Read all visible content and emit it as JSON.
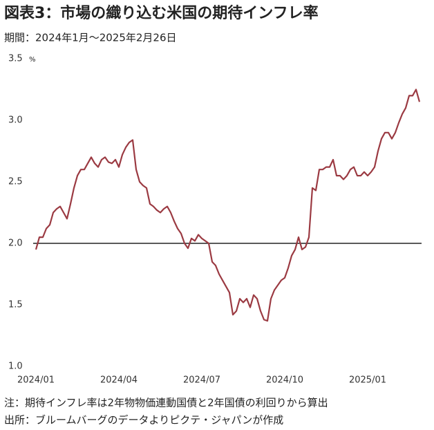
{
  "chart_data": {
    "type": "line",
    "title": "図表3：市場の織り込む米国の期待インフレ率",
    "subtitle": "期間：2024年1月～2025年2月26日",
    "y_unit": "%",
    "note": "注：期待インフレ率は2年物物価連動国債と2年国債の利回りから算出",
    "source": "出所：ブルームバーグのデータよりピクテ・ジャパンが作成",
    "categories": [
      "2024/01",
      null,
      null,
      null,
      null,
      null,
      null,
      null,
      null,
      null,
      null,
      null,
      null,
      null,
      null,
      null,
      null,
      null,
      null,
      null,
      null,
      null,
      null,
      null,
      "2024/04",
      null,
      null,
      null,
      null,
      null,
      null,
      null,
      null,
      null,
      null,
      null,
      null,
      null,
      null,
      null,
      null,
      null,
      null,
      null,
      null,
      null,
      null,
      null,
      "2024/07",
      null,
      null,
      null,
      null,
      null,
      null,
      null,
      null,
      null,
      null,
      null,
      null,
      null,
      null,
      null,
      null,
      null,
      null,
      null,
      null,
      null,
      null,
      null,
      "2024/10",
      null,
      null,
      null,
      null,
      null,
      null,
      null,
      null,
      null,
      null,
      null,
      null,
      null,
      null,
      null,
      null,
      null,
      null,
      null,
      null,
      null,
      null,
      null,
      "2025/01",
      null,
      null,
      null,
      null,
      null,
      null,
      null,
      null,
      null,
      null,
      null,
      null,
      null,
      null,
      null
    ],
    "series": [
      {
        "color": "#9b3a42",
        "values": [
          1.95,
          2.05,
          2.05,
          2.12,
          2.15,
          2.25,
          2.28,
          2.3,
          2.25,
          2.2,
          2.32,
          2.45,
          2.55,
          2.6,
          2.6,
          2.65,
          2.7,
          2.65,
          2.62,
          2.68,
          2.7,
          2.66,
          2.65,
          2.68,
          2.62,
          2.72,
          2.78,
          2.82,
          2.84,
          2.6,
          2.5,
          2.47,
          2.45,
          2.32,
          2.3,
          2.27,
          2.25,
          2.28,
          2.3,
          2.25,
          2.18,
          2.12,
          2.08,
          2.0,
          1.96,
          2.04,
          2.02,
          2.07,
          2.04,
          2.02,
          2.0,
          1.85,
          1.82,
          1.75,
          1.7,
          1.65,
          1.6,
          1.42,
          1.45,
          1.55,
          1.52,
          1.55,
          1.48,
          1.58,
          1.55,
          1.45,
          1.38,
          1.37,
          1.55,
          1.62,
          1.66,
          1.7,
          1.72,
          1.8,
          1.9,
          1.95,
          2.05,
          1.95,
          1.97,
          2.05,
          2.45,
          2.43,
          2.6,
          2.6,
          2.62,
          2.62,
          2.68,
          2.55,
          2.55,
          2.52,
          2.55,
          2.6,
          2.62,
          2.55,
          2.55,
          2.58,
          2.55,
          2.58,
          2.62,
          2.75,
          2.85,
          2.9,
          2.9,
          2.85,
          2.9,
          2.98,
          3.05,
          3.1,
          3.2,
          3.2,
          3.25,
          3.15
        ]
      }
    ],
    "reference_line": 2,
    "ylim": [
      1,
      3.5
    ],
    "yticks": [
      {
        "value": 1,
        "label": "1.0"
      },
      1.5,
      {
        "value": 2,
        "label": "2.0"
      },
      2.5,
      {
        "value": 3,
        "label": "3.0"
      },
      3.5
    ]
  }
}
